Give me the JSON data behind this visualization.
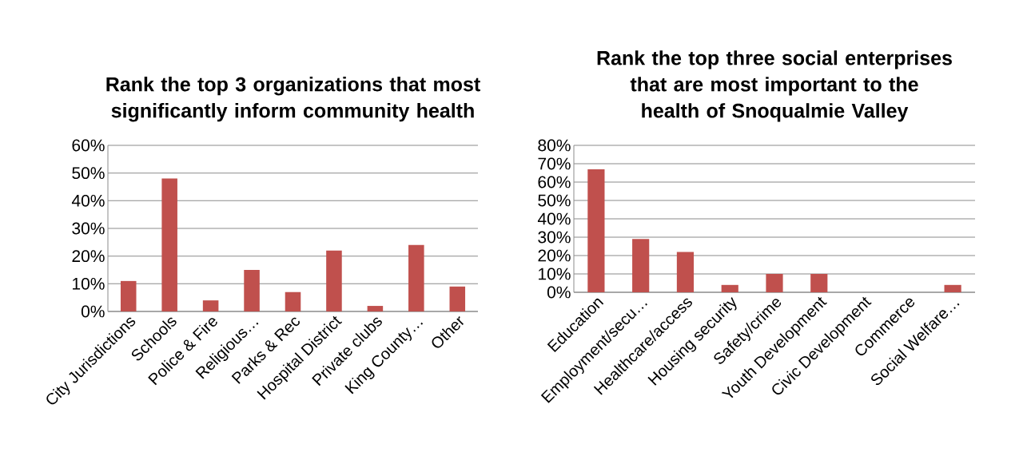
{
  "chart_data": [
    {
      "type": "bar",
      "title": "Rank the top 3 organizations that most significantly inform community health",
      "categories": [
        "City Jurisdictions",
        "Schools",
        "Police & Fire",
        "Religious…",
        "Parks & Rec",
        "Hospital District",
        "Private clubs",
        "King County…",
        "Other"
      ],
      "values": [
        11,
        48,
        4,
        15,
        7,
        22,
        2,
        24,
        9
      ],
      "color": "#c0504d",
      "ylim": [
        0,
        60
      ],
      "yticks": [
        {
          "value": 0,
          "label": "0%"
        },
        {
          "value": 10,
          "label": "10%"
        },
        {
          "value": 20,
          "label": "20%"
        },
        {
          "value": 30,
          "label": "30%"
        },
        {
          "value": 40,
          "label": "40%"
        },
        {
          "value": 50,
          "label": "50%"
        },
        {
          "value": 60,
          "label": "60%"
        }
      ],
      "grid": "y"
    },
    {
      "type": "bar",
      "title": "Rank the top three social enterprises that are most important to the health of Snoqualmie Valley",
      "categories": [
        "Education",
        "Employment/secu…",
        "Healthcare/access",
        "Housing security",
        "Safety/crime",
        "Youth Development",
        "Civic Development",
        "Commerce",
        "Social Welfare…"
      ],
      "values": [
        67,
        29,
        22,
        4,
        10,
        10,
        0,
        0,
        4
      ],
      "color": "#c0504d",
      "ylim": [
        0,
        80
      ],
      "yticks": [
        {
          "value": 0,
          "label": "0%"
        },
        {
          "value": 10,
          "label": "10%"
        },
        {
          "value": 20,
          "label": "20%"
        },
        {
          "value": 30,
          "label": "30%"
        },
        {
          "value": 40,
          "label": "40%"
        },
        {
          "value": 50,
          "label": "50%"
        },
        {
          "value": 60,
          "label": "60%"
        },
        {
          "value": 70,
          "label": "70%"
        },
        {
          "value": 80,
          "label": "80%"
        }
      ],
      "grid": "y"
    }
  ]
}
